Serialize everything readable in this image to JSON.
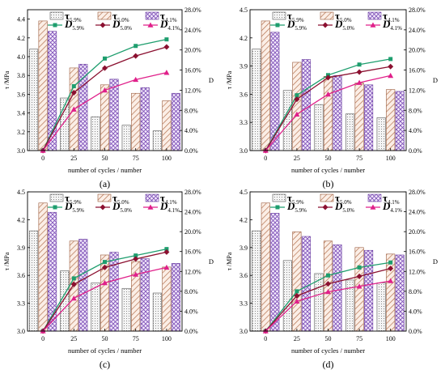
{
  "chart_data": [
    {
      "panel_label": "(a)",
      "type": "bar+line",
      "categories": [
        "0",
        "25",
        "50",
        "75",
        "100"
      ],
      "xlabel": "number of cycles / number",
      "ylabel": "τ /MPa",
      "y2label": "D",
      "ylim": [
        3.0,
        4.5
      ],
      "yticks": [
        "3.0",
        "3.2",
        "3.4",
        "3.6",
        "3.8",
        "4.0",
        "4.2",
        "4.4"
      ],
      "y2lim": [
        0,
        28
      ],
      "y2ticks": [
        "0.0%",
        "4.0%",
        "8.0%",
        "12.0%",
        "16.0%",
        "20.0%",
        "24.0%",
        "28.0%"
      ],
      "bar_series": [
        {
          "name": "τ5.9%",
          "values": [
            4.08,
            3.56,
            3.36,
            3.27,
            3.21
          ]
        },
        {
          "name": "τ5.0%",
          "values": [
            4.38,
            3.88,
            3.7,
            3.61,
            3.53
          ]
        },
        {
          "name": "τ4.1%",
          "values": [
            4.27,
            3.92,
            3.76,
            3.67,
            3.61
          ]
        }
      ],
      "line_series": [
        {
          "name": "D5.9%",
          "values": [
            0,
            12.8,
            18.3,
            20.8,
            22.1
          ]
        },
        {
          "name": "D5.0%",
          "values": [
            0,
            11.5,
            16.4,
            18.8,
            20.6
          ]
        },
        {
          "name": "D4.1%",
          "values": [
            0,
            8.2,
            12.0,
            14.1,
            15.5
          ]
        }
      ]
    },
    {
      "panel_label": "(b)",
      "type": "bar+line",
      "categories": [
        "0",
        "25",
        "50",
        "75",
        "100"
      ],
      "xlabel": "number of cycles / number",
      "ylabel": "τ /MPa",
      "y2label": "D",
      "ylim": [
        3.0,
        4.5
      ],
      "yticks": [
        "3.0",
        "3.3",
        "3.6",
        "3.9",
        "4.2",
        "4.5"
      ],
      "y2lim": [
        0,
        28
      ],
      "y2ticks": [
        "0.0%",
        "4.0%",
        "8.0%",
        "12.0%",
        "16.0%",
        "20.0%",
        "24.0%",
        "28.0%"
      ],
      "bar_series": [
        {
          "name": "τ5.9%",
          "values": [
            4.08,
            3.64,
            3.49,
            3.39,
            3.35
          ]
        },
        {
          "name": "τ5.0%",
          "values": [
            4.38,
            3.94,
            3.79,
            3.72,
            3.65
          ]
        },
        {
          "name": "τ4.1%",
          "values": [
            4.26,
            3.97,
            3.8,
            3.7,
            3.63
          ]
        }
      ],
      "line_series": [
        {
          "name": "D5.9%",
          "values": [
            0,
            11.0,
            15.0,
            17.1,
            18.2
          ]
        },
        {
          "name": "D5.0%",
          "values": [
            0,
            10.2,
            14.5,
            15.6,
            16.7
          ]
        },
        {
          "name": "D4.1%",
          "values": [
            0,
            7.2,
            11.2,
            13.5,
            14.9
          ]
        }
      ]
    },
    {
      "panel_label": "(c)",
      "type": "bar+line",
      "categories": [
        "0",
        "25",
        "50",
        "75",
        "100"
      ],
      "xlabel": "number of cycles / number",
      "ylabel": "τ /MPa",
      "y2label": "D",
      "ylim": [
        3.0,
        4.5
      ],
      "yticks": [
        "3.0",
        "3.3",
        "3.6",
        "3.9",
        "4.2",
        "4.5"
      ],
      "y2lim": [
        0,
        28
      ],
      "y2ticks": [
        "0.0%",
        "4.0%",
        "8.0%",
        "12.0%",
        "16.0%",
        "20.0%",
        "24.0%",
        "28.0%"
      ],
      "bar_series": [
        {
          "name": "τ5.9%",
          "values": [
            4.08,
            3.65,
            3.52,
            3.46,
            3.41
          ]
        },
        {
          "name": "τ5.0%",
          "values": [
            4.38,
            3.97,
            3.82,
            3.75,
            3.69
          ]
        },
        {
          "name": "τ4.1%",
          "values": [
            4.28,
            3.99,
            3.85,
            3.78,
            3.73
          ]
        }
      ],
      "line_series": [
        {
          "name": "D5.9%",
          "values": [
            0,
            10.6,
            13.9,
            15.2,
            16.5
          ]
        },
        {
          "name": "D5.0%",
          "values": [
            0,
            9.4,
            12.8,
            14.5,
            15.9
          ]
        },
        {
          "name": "D4.1%",
          "values": [
            0,
            6.6,
            9.7,
            11.4,
            12.8
          ]
        }
      ]
    },
    {
      "panel_label": "(d)",
      "type": "bar+line",
      "categories": [
        "0",
        "25",
        "50",
        "75",
        "100"
      ],
      "xlabel": "number of cycles / number",
      "ylabel": "τ /MPa",
      "y2label": "D",
      "ylim": [
        3.0,
        4.5
      ],
      "yticks": [
        "3.0",
        "3.3",
        "3.6",
        "3.9",
        "4.2",
        "4.5"
      ],
      "y2lim": [
        0,
        28
      ],
      "y2ticks": [
        "0.0%",
        "4.0%",
        "8.0%",
        "12.0%",
        "16.0%",
        "20.0%",
        "24.0%",
        "28.0%"
      ],
      "bar_series": [
        {
          "name": "τ5.9%",
          "values": [
            4.08,
            3.76,
            3.62,
            3.55,
            3.52
          ]
        },
        {
          "name": "τ5.0%",
          "values": [
            4.38,
            4.07,
            3.97,
            3.9,
            3.83
          ]
        },
        {
          "name": "τ4.1%",
          "values": [
            4.27,
            4.02,
            3.93,
            3.87,
            3.82
          ]
        }
      ],
      "line_series": [
        {
          "name": "D5.9%",
          "values": [
            0,
            8.0,
            11.2,
            12.8,
            13.8
          ]
        },
        {
          "name": "D5.0%",
          "values": [
            0,
            7.1,
            9.5,
            11.0,
            12.6
          ]
        },
        {
          "name": "D4.1%",
          "values": [
            0,
            6.0,
            7.9,
            9.0,
            10.1
          ]
        }
      ]
    }
  ],
  "colors": {
    "bar_59": "#555555",
    "bar_50": "#9a5b3c",
    "bar_41": "#6b3fa0",
    "line_59": "#1e9e6e",
    "line_50": "#8b1030",
    "line_41": "#e0208a"
  }
}
